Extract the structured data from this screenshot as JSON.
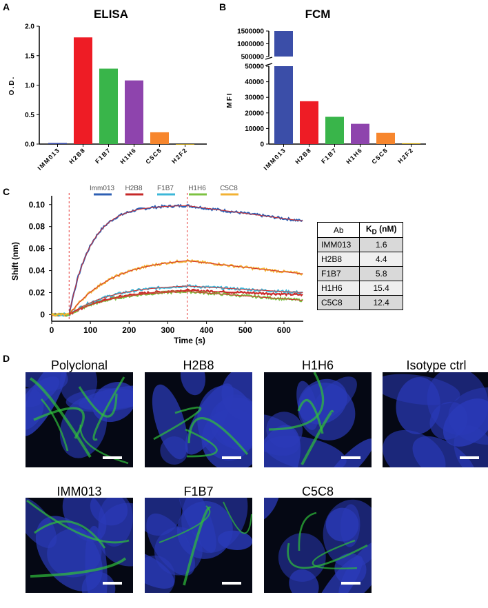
{
  "panels": {
    "a": "A",
    "b": "B",
    "c": "C",
    "d": "D"
  },
  "chart_data": [
    {
      "type": "bar",
      "title": "ELISA",
      "ylabel": "O.D.",
      "categories": [
        "IMM013",
        "H2B8",
        "F1B7",
        "H1H6",
        "C5C8",
        "H2F2"
      ],
      "values": [
        0.02,
        1.81,
        1.28,
        1.08,
        0.2,
        0.0
      ],
      "colors": [
        "#3b4ea8",
        "#ee1c25",
        "#39b54a",
        "#8e44ad",
        "#f7862d",
        "#c8a000"
      ],
      "ylim": [
        0,
        2.0
      ],
      "yticks": [
        "0.0",
        "0.5",
        "1.0",
        "1.5",
        "2.0"
      ]
    },
    {
      "type": "bar",
      "title": "FCM",
      "ylabel": "MFI",
      "categories": [
        "IMM013",
        "H2B8",
        "F1B7",
        "H1H6",
        "C5C8",
        "H2F2"
      ],
      "values": [
        1500000,
        27500,
        17500,
        13000,
        7200,
        500
      ],
      "colors": [
        "#3b4ea8",
        "#ee1c25",
        "#39b54a",
        "#8e44ad",
        "#f7862d",
        "#c8a000"
      ],
      "ylim_lower": [
        0,
        50000
      ],
      "ylim_upper": [
        500000,
        1500000
      ],
      "yticks_lower": [
        "0",
        "10000",
        "20000",
        "30000",
        "40000",
        "50000"
      ],
      "yticks_upper": [
        "500000",
        "1000000",
        "1500000"
      ],
      "axis_break": true
    },
    {
      "type": "line",
      "xlabel": "Time (s)",
      "ylabel": "Shift (nm)",
      "xlim": [
        0,
        650
      ],
      "xticks": [
        "0",
        "100",
        "200",
        "300",
        "400",
        "500",
        "600"
      ],
      "yticks": [
        "0",
        "0.02",
        "0.04",
        "0.06",
        "0.08",
        "0.10"
      ],
      "markers": [
        45,
        350
      ],
      "legend": [
        "Imm013",
        "H2B8",
        "F1B7",
        "H1H6",
        "C5C8"
      ],
      "series": [
        {
          "name": "Imm013",
          "color": "#2d5fb3",
          "plateau": 0.099,
          "end": 0.085
        },
        {
          "name": "H2B8",
          "color": "#c62828",
          "plateau": 0.022,
          "end": 0.018
        },
        {
          "name": "F1B7",
          "color": "#3cb7d8",
          "plateau": 0.026,
          "end": 0.02
        },
        {
          "name": "H1H6",
          "color": "#7cc242",
          "plateau": 0.021,
          "end": 0.013
        },
        {
          "name": "C5C8",
          "color": "#f2b233",
          "plateau": 0.049,
          "end": 0.037
        }
      ]
    }
  ],
  "kd_table": {
    "header_ab": "Ab",
    "header_kd_main": "K",
    "header_kd_sub": "D",
    "header_kd_unit": " (nM)",
    "rows": [
      {
        "ab": "IMM013",
        "kd": "1.6"
      },
      {
        "ab": "H2B8",
        "kd": "4.4"
      },
      {
        "ab": "F1B7",
        "kd": "5.8"
      },
      {
        "ab": "H1H6",
        "kd": "15.4"
      },
      {
        "ab": "C5C8",
        "kd": "12.4"
      }
    ]
  },
  "images": {
    "row1": [
      "Polyclonal",
      "H2B8",
      "H1H6",
      "Isotype ctrl"
    ],
    "row2": [
      "IMM013",
      "F1B7",
      "C5C8"
    ],
    "tissue_color": "#2a3ab8",
    "stain_color": "#2fbf3a"
  }
}
